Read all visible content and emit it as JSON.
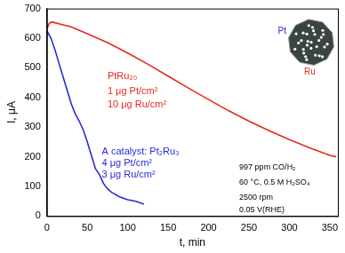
{
  "chart_data": {
    "type": "line",
    "xlabel": "t, min",
    "ylabel": "I, μA",
    "xlim": [
      0,
      360
    ],
    "xticks": [
      0,
      50,
      100,
      150,
      200,
      250,
      300,
      350
    ],
    "ylim": [
      0,
      700
    ],
    "yticks": [
      0,
      100,
      200,
      300,
      400,
      500,
      600,
      700
    ],
    "grid": false,
    "series": [
      {
        "color": "#e8281e",
        "x": [
          0,
          3,
          6,
          10,
          20,
          30,
          50,
          75,
          100,
          125,
          150,
          175,
          200,
          225,
          250,
          275,
          300,
          325,
          350,
          358
        ],
        "values": [
          630,
          650,
          655,
          652,
          645,
          638,
          615,
          585,
          550,
          512,
          472,
          432,
          393,
          355,
          320,
          288,
          258,
          230,
          205,
          200
        ]
      },
      {
        "color": "#2a2ad8",
        "x": [
          0,
          5,
          10,
          15,
          20,
          25,
          30,
          35,
          40,
          45,
          50,
          55,
          60,
          65,
          70,
          75,
          80,
          90,
          100,
          110,
          120
        ],
        "values": [
          625,
          600,
          560,
          515,
          470,
          425,
          380,
          345,
          320,
          290,
          250,
          205,
          160,
          140,
          110,
          92,
          80,
          65,
          55,
          50,
          40
        ]
      }
    ],
    "annotations": [
      {
        "text": "PtRu₂₀",
        "color": "#e8281e"
      },
      {
        "text": "1 μg Pt/cm²",
        "color": "#e8281e"
      },
      {
        "text": "10 μg Ru/cm²",
        "color": "#e8281e"
      },
      {
        "text": "A catalyst: Pt₂Ru₃",
        "color": "#2a2ad8"
      },
      {
        "text": "4 μg Pt/cm²",
        "color": "#2a2ad8"
      },
      {
        "text": "3 μg Ru/cm²",
        "color": "#2a2ad8"
      },
      {
        "text": "997 ppm CO/H₂",
        "color": "#000000"
      },
      {
        "text": "60 °C, 0.5 M H₂SO₄",
        "color": "#000000"
      },
      {
        "text": "2500 rpm",
        "color": "#000000"
      },
      {
        "text": "0.05 V(RHE)",
        "color": "#000000"
      }
    ],
    "inset_labels": [
      {
        "text": "Pt",
        "color": "#2a2ad8"
      },
      {
        "text": "Ru",
        "color": "#e8281e"
      }
    ]
  }
}
